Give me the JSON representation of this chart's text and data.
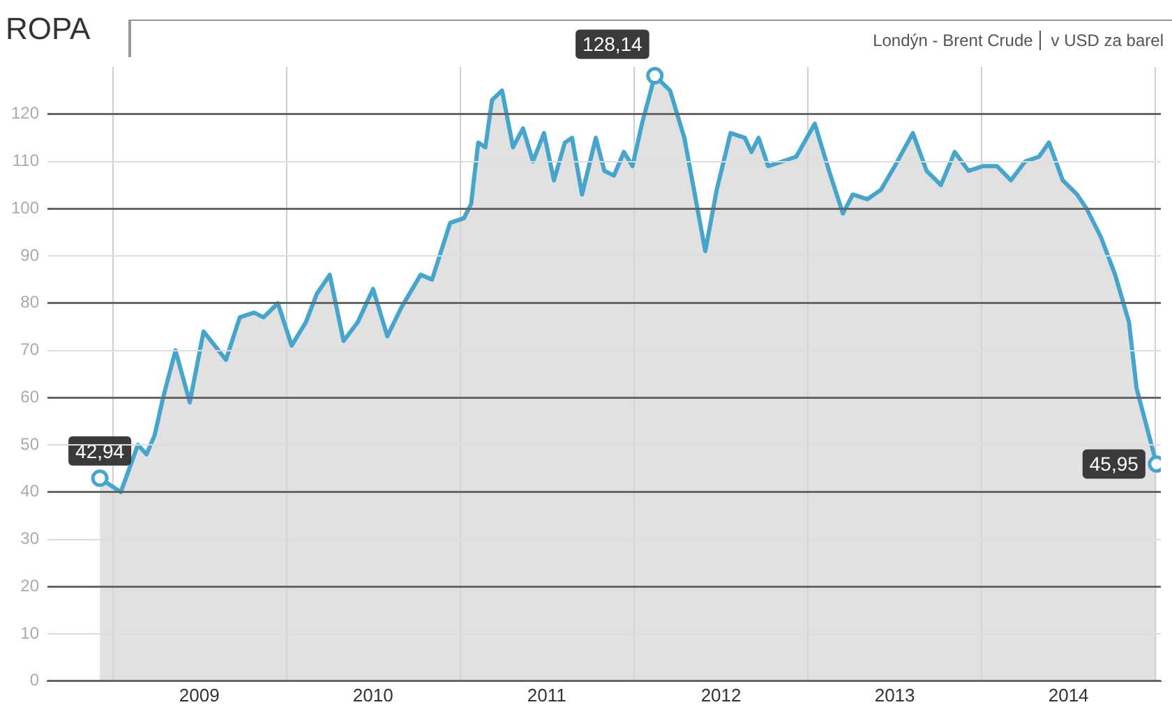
{
  "chart_data": {
    "type": "area",
    "title": "ROPA",
    "subtitle": "Londýn - Brent Crude",
    "ylabel": "v USD za barel",
    "x": [
      "2008-12-05",
      "2009-01-18",
      "2009-02-23",
      "2009-03-13",
      "2009-03-30",
      "2009-04-17",
      "2009-05-13",
      "2009-06-12",
      "2009-07-11",
      "2009-08-27",
      "2009-09-25",
      "2009-10-25",
      "2009-11-14",
      "2009-12-14",
      "2010-01-12",
      "2010-02-11",
      "2010-03-06",
      "2010-04-02",
      "2010-05-01",
      "2010-05-31",
      "2010-07-02",
      "2010-08-01",
      "2010-08-30",
      "2010-10-10",
      "2010-11-03",
      "2010-12-11",
      "2011-01-09",
      "2011-01-24",
      "2011-02-08",
      "2011-02-23",
      "2011-03-09",
      "2011-03-30",
      "2011-04-22",
      "2011-05-13",
      "2011-06-03",
      "2011-06-26",
      "2011-07-17",
      "2011-08-09",
      "2011-08-24",
      "2011-09-14",
      "2011-10-13",
      "2011-10-31",
      "2011-11-20",
      "2011-12-11",
      "2011-12-29",
      "2012-01-18",
      "2012-02-14",
      "2012-03-17",
      "2012-04-16",
      "2012-05-30",
      "2012-06-23",
      "2012-07-22",
      "2012-08-21",
      "2012-09-04",
      "2012-09-19",
      "2012-10-09",
      "2012-11-08",
      "2012-12-07",
      "2013-01-15",
      "2013-02-14",
      "2013-03-15",
      "2013-04-05",
      "2013-05-05",
      "2013-06-03",
      "2013-07-02",
      "2013-08-09",
      "2013-09-07",
      "2013-10-07",
      "2013-11-05",
      "2013-12-04",
      "2014-01-03",
      "2014-02-02",
      "2014-03-03",
      "2014-04-02",
      "2014-05-01",
      "2014-05-22",
      "2014-06-20",
      "2014-07-20",
      "2014-08-09",
      "2014-09-08",
      "2014-10-08",
      "2014-11-06",
      "2014-11-22",
      "2015-01-03"
    ],
    "series": [
      {
        "color": "#45a5cc",
        "values": [
          42.94,
          40,
          50,
          48,
          52,
          60,
          70,
          59,
          74,
          68,
          77,
          78,
          77,
          80,
          71,
          76,
          82,
          86,
          72,
          76,
          83,
          73,
          79,
          86,
          85,
          97,
          98,
          101,
          114,
          113,
          123,
          125,
          113,
          117,
          110,
          116,
          106,
          114,
          115,
          103,
          115,
          108,
          107,
          112,
          109,
          118,
          128.14,
          125,
          115,
          91,
          104,
          116,
          115,
          112,
          115,
          109,
          110,
          111,
          118,
          108,
          99,
          103,
          102,
          104,
          109,
          116,
          108,
          105,
          112,
          108,
          109,
          109,
          106,
          110,
          111,
          114,
          106,
          103,
          100,
          94,
          86,
          76,
          62,
          45.95
        ],
        "value_labels": [
          "42,94",
          null,
          null,
          null,
          null,
          null,
          null,
          null,
          null,
          null,
          null,
          null,
          null,
          null,
          null,
          null,
          null,
          null,
          null,
          null,
          null,
          null,
          null,
          null,
          null,
          null,
          null,
          null,
          null,
          null,
          null,
          null,
          null,
          null,
          null,
          null,
          null,
          null,
          null,
          null,
          null,
          null,
          null,
          null,
          null,
          null,
          "128,14",
          null,
          null,
          null,
          null,
          null,
          null,
          null,
          null,
          null,
          null,
          null,
          null,
          null,
          null,
          null,
          null,
          null,
          null,
          null,
          null,
          null,
          null,
          null,
          null,
          null,
          null,
          null,
          null,
          null,
          null,
          null,
          null,
          null,
          null,
          null,
          null,
          "45,95"
        ]
      }
    ],
    "xlim": [
      "2008-08-17",
      "2015-01-12"
    ],
    "xticks": [
      {
        "value": "2009-01-01",
        "label": null
      },
      {
        "value": "2009-07-02",
        "label": "2009"
      },
      {
        "value": "2010-01-01",
        "label": null
      },
      {
        "value": "2010-07-02",
        "label": "2010"
      },
      {
        "value": "2011-01-01",
        "label": null
      },
      {
        "value": "2011-07-02",
        "label": "2011"
      },
      {
        "value": "2012-01-01",
        "label": null
      },
      {
        "value": "2012-07-02",
        "label": "2012"
      },
      {
        "value": "2013-01-01",
        "label": null
      },
      {
        "value": "2013-07-02",
        "label": "2013"
      },
      {
        "value": "2014-01-01",
        "label": null
      },
      {
        "value": "2014-07-02",
        "label": "2014"
      },
      {
        "value": "2015-01-01",
        "label": null
      }
    ],
    "ylim": [
      0,
      130
    ],
    "yticks": [
      0,
      10,
      20,
      30,
      40,
      50,
      60,
      70,
      80,
      90,
      100,
      110,
      120
    ],
    "grid": true,
    "legend": false
  }
}
